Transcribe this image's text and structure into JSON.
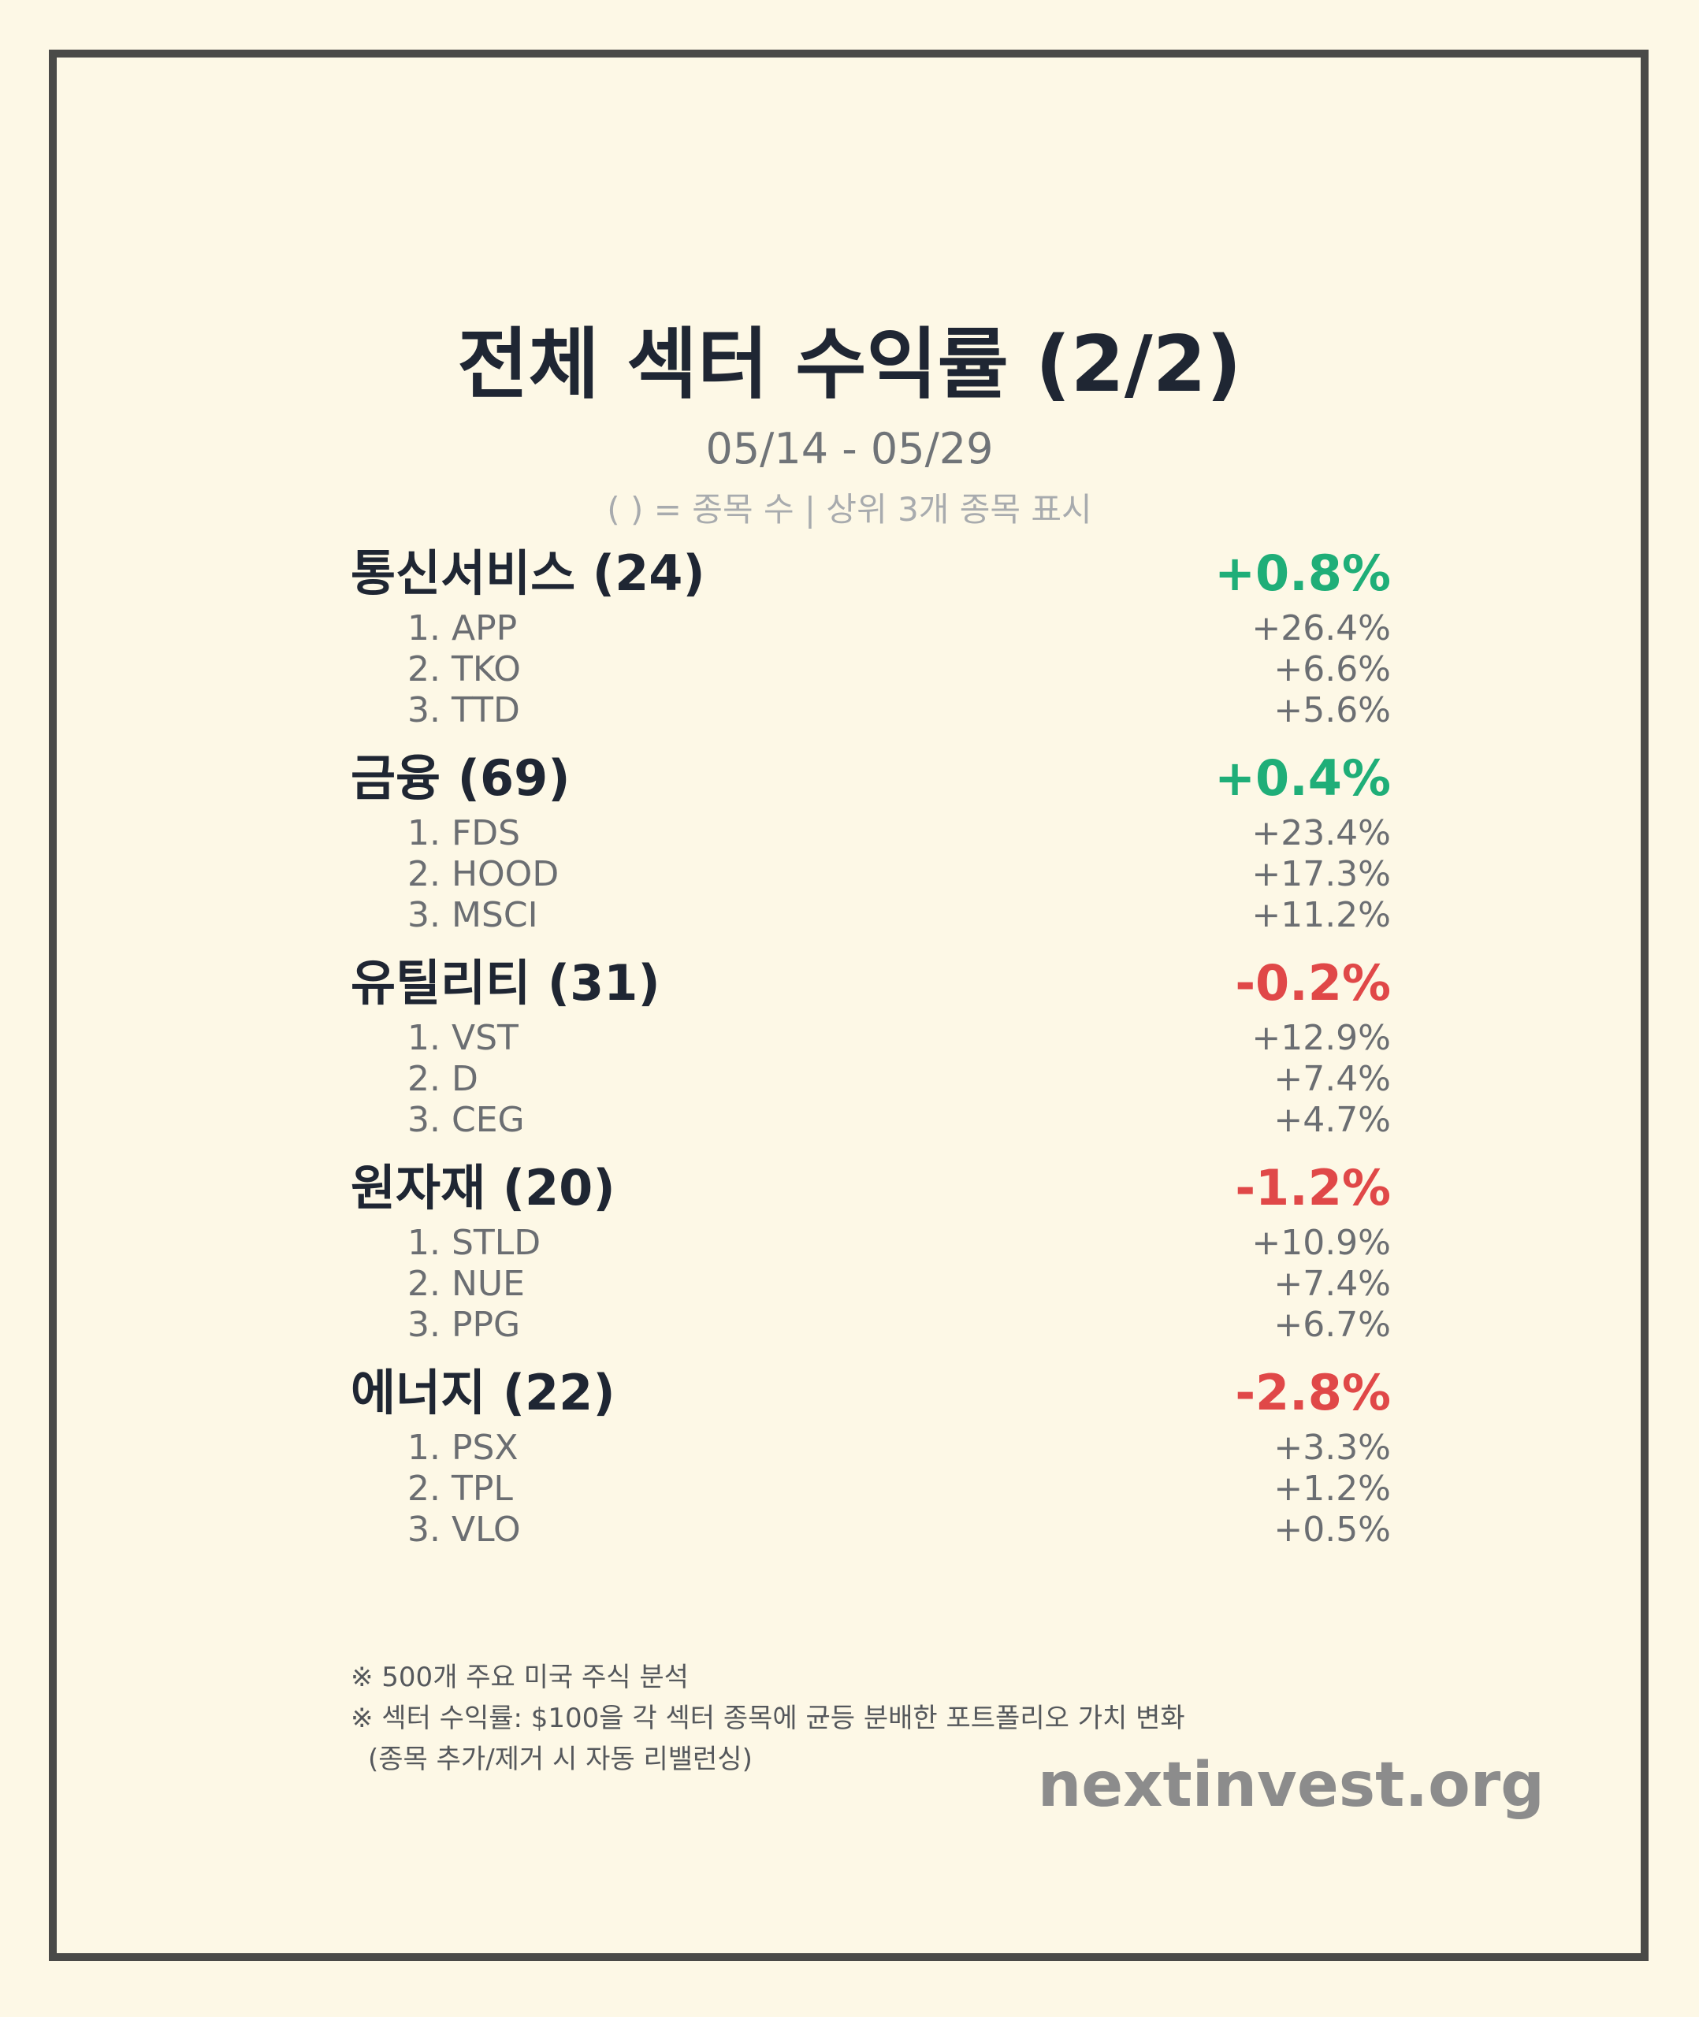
{
  "title": "전체 섹터 수익률 (2/2)",
  "period": "05/14 - 05/29",
  "legend_note": "( ) = 종목 수 | 상위 3개 종목 표시",
  "colors": {
    "positive": "#1fae78",
    "negative": "#e04848",
    "background": "#fdf8e6",
    "border": "#4a4a48"
  },
  "sectors": [
    {
      "name": "통신서비스 (24)",
      "return": "+0.8%",
      "trend": "positive",
      "stocks": [
        {
          "name": "1. APP",
          "return": "+26.4%"
        },
        {
          "name": "2. TKO",
          "return": "+6.6%"
        },
        {
          "name": "3. TTD",
          "return": "+5.6%"
        }
      ]
    },
    {
      "name": "금융 (69)",
      "return": "+0.4%",
      "trend": "positive",
      "stocks": [
        {
          "name": "1. FDS",
          "return": "+23.4%"
        },
        {
          "name": "2. HOOD",
          "return": "+17.3%"
        },
        {
          "name": "3. MSCI",
          "return": "+11.2%"
        }
      ]
    },
    {
      "name": "유틸리티 (31)",
      "return": "-0.2%",
      "trend": "negative",
      "stocks": [
        {
          "name": "1. VST",
          "return": "+12.9%"
        },
        {
          "name": "2. D",
          "return": "+7.4%"
        },
        {
          "name": "3. CEG",
          "return": "+4.7%"
        }
      ]
    },
    {
      "name": "원자재 (20)",
      "return": "-1.2%",
      "trend": "negative",
      "stocks": [
        {
          "name": "1. STLD",
          "return": "+10.9%"
        },
        {
          "name": "2. NUE",
          "return": "+7.4%"
        },
        {
          "name": "3. PPG",
          "return": "+6.7%"
        }
      ]
    },
    {
      "name": "에너지 (22)",
      "return": "-2.8%",
      "trend": "negative",
      "stocks": [
        {
          "name": "1. PSX",
          "return": "+3.3%"
        },
        {
          "name": "2. TPL",
          "return": "+1.2%"
        },
        {
          "name": "3. VLO",
          "return": "+0.5%"
        }
      ]
    }
  ],
  "footnotes": [
    "※ 500개 주요 미국 주식 분석",
    "※ 섹터 수익률: $100을 각 섹터 종목에 균등 분배한 포트폴리오 가치 변화",
    "(종목 추가/제거 시 자동 리밸런싱)"
  ],
  "brand": "nextinvest.org"
}
